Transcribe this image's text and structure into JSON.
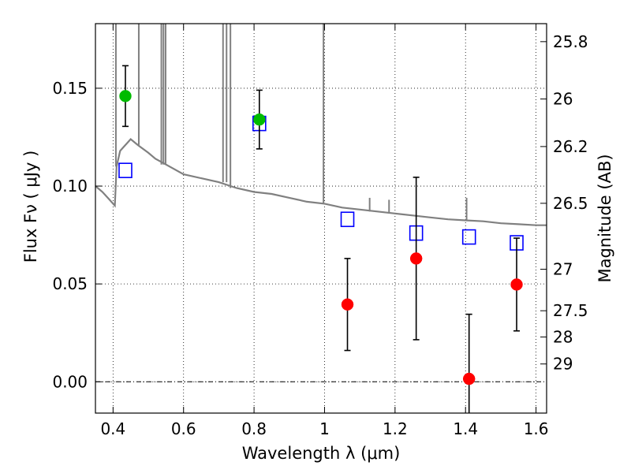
{
  "chart_data": {
    "type": "scatter",
    "xlabel": "Wavelength  λ (μm)",
    "ylabel": "Flux  Fν ( μJy )",
    "ylabel_right": "Magnitude (AB)",
    "xlim": [
      0.35,
      1.63
    ],
    "ylim": [
      -0.016,
      0.183
    ],
    "x_ticks": [
      0.4,
      0.6,
      0.8,
      1.0,
      1.2,
      1.4,
      1.6
    ],
    "x_tick_labels": [
      "0.4",
      "0.6",
      "0.8",
      "1",
      "1.2",
      "1.4",
      "1.6"
    ],
    "y_ticks": [
      0.0,
      0.05,
      0.1,
      0.15
    ],
    "y_tick_labels": [
      "0.00",
      "0.05",
      "0.10",
      "0.15"
    ],
    "right_ticks": [
      {
        "label": "25.8",
        "flux": 0.1738
      },
      {
        "label": "26",
        "flux": 0.1445
      },
      {
        "label": "26.2",
        "flux": 0.1202
      },
      {
        "label": "26.5",
        "flux": 0.0912
      },
      {
        "label": "27",
        "flux": 0.0575
      },
      {
        "label": "27.5",
        "flux": 0.0363
      },
      {
        "label": "28",
        "flux": 0.0229
      },
      {
        "label": "29",
        "flux": 0.0091
      }
    ],
    "zero_line": 0,
    "grid": true,
    "series": [
      {
        "kind": "spectrum",
        "color": "#808080",
        "points": [
          [
            0.35,
            0.1
          ],
          [
            0.37,
            0.097
          ],
          [
            0.39,
            0.093
          ],
          [
            0.405,
            0.09
          ],
          [
            0.41,
            0.11
          ],
          [
            0.42,
            0.118
          ],
          [
            0.43,
            0.12
          ],
          [
            0.45,
            0.124
          ],
          [
            0.47,
            0.121
          ],
          [
            0.5,
            0.117
          ],
          [
            0.52,
            0.114
          ],
          [
            0.55,
            0.111
          ],
          [
            0.6,
            0.106
          ],
          [
            0.65,
            0.104
          ],
          [
            0.7,
            0.102
          ],
          [
            0.75,
            0.099
          ],
          [
            0.8,
            0.097
          ],
          [
            0.85,
            0.096
          ],
          [
            0.9,
            0.094
          ],
          [
            0.95,
            0.092
          ],
          [
            1.0,
            0.091
          ],
          [
            1.05,
            0.089
          ],
          [
            1.1,
            0.088
          ],
          [
            1.15,
            0.087
          ],
          [
            1.2,
            0.086
          ],
          [
            1.25,
            0.085
          ],
          [
            1.3,
            0.084
          ],
          [
            1.35,
            0.083
          ],
          [
            1.4,
            0.0825
          ],
          [
            1.45,
            0.082
          ],
          [
            1.5,
            0.081
          ],
          [
            1.55,
            0.0805
          ],
          [
            1.6,
            0.08
          ],
          [
            1.63,
            0.08
          ]
        ],
        "emission_lines": [
          [
            0.408,
            0.2
          ],
          [
            0.473,
            0.2
          ],
          [
            0.537,
            0.2
          ],
          [
            0.543,
            0.2
          ],
          [
            0.549,
            0.2
          ],
          [
            0.712,
            0.2
          ],
          [
            0.722,
            0.2
          ],
          [
            0.733,
            0.2
          ],
          [
            0.997,
            0.2
          ],
          [
            1.128,
            0.094
          ],
          [
            1.183,
            0.093
          ],
          [
            1.403,
            0.094
          ]
        ]
      },
      {
        "kind": "model-photometry",
        "marker": "open-square",
        "color": "#0000ff",
        "points": [
          [
            0.435,
            0.108
          ],
          [
            0.815,
            0.132
          ],
          [
            1.065,
            0.083
          ],
          [
            1.26,
            0.076
          ],
          [
            1.41,
            0.074
          ],
          [
            1.545,
            0.071
          ]
        ]
      },
      {
        "kind": "detections",
        "marker": "filled-circle",
        "color": "#00bb00",
        "points": [
          [
            0.435,
            0.146,
            0.0155
          ],
          [
            0.815,
            0.134,
            0.015
          ]
        ]
      },
      {
        "kind": "measurements",
        "marker": "filled-circle",
        "color": "#ff0000",
        "points": [
          [
            1.065,
            0.0395,
            0.0235
          ],
          [
            1.26,
            0.063,
            0.0415
          ],
          [
            1.41,
            0.0015,
            0.033
          ],
          [
            1.545,
            0.0497,
            0.0237
          ]
        ]
      }
    ]
  }
}
